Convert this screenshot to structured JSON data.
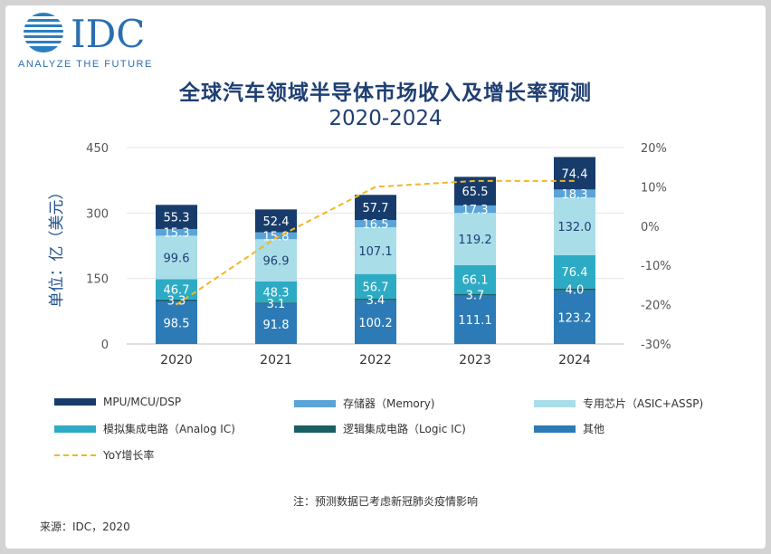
{
  "brand": {
    "name": "IDC",
    "tagline": "ANALYZE THE FUTURE"
  },
  "chart_data": {
    "type": "bar",
    "stacked": true,
    "title": "全球汽车领域半导体市场收入及增长率预测",
    "subtitle": "2020-2024",
    "ylabel": "单位：亿（美元）",
    "ylim": [
      0,
      450
    ],
    "yticks": [
      0,
      150,
      300,
      450
    ],
    "y2lim": [
      -30,
      20
    ],
    "y2ticks": [
      "20%",
      "10%",
      "0%",
      "-10%",
      "-20%",
      "-30%"
    ],
    "y2tick_values": [
      20,
      10,
      0,
      -10,
      -20,
      -30
    ],
    "categories": [
      "2020",
      "2021",
      "2022",
      "2023",
      "2024"
    ],
    "series": [
      {
        "name": "其他",
        "color": "#2c7bb6",
        "values": [
          98.5,
          91.8,
          100.2,
          111.1,
          123.2
        ]
      },
      {
        "name": "逻辑集成电路（Logic IC)",
        "color": "#1c5f62",
        "values": [
          3.3,
          3.1,
          3.4,
          3.7,
          4.0
        ]
      },
      {
        "name": "模拟集成电路（Analog IC)",
        "color": "#2eabc4",
        "values": [
          46.7,
          48.3,
          56.7,
          66.1,
          76.4
        ]
      },
      {
        "name": "专用芯片（ASIC+ASSP)",
        "color": "#a9dde8",
        "values": [
          99.6,
          96.9,
          107.1,
          119.2,
          132.0
        ]
      },
      {
        "name": "存储器（Memory)",
        "color": "#5aa4d8",
        "values": [
          15.3,
          15.8,
          16.5,
          17.3,
          18.3
        ]
      },
      {
        "name": "MPU/MCU/DSP",
        "color": "#173c6b",
        "values": [
          55.3,
          52.4,
          57.7,
          65.5,
          74.4
        ]
      }
    ],
    "line": {
      "name": "YoY增长率",
      "color": "#f2b623",
      "axis": "right",
      "values": [
        -20,
        -3,
        10,
        11.5,
        11.5
      ]
    },
    "legend_rows": [
      [
        "MPU/MCU/DSP",
        "存储器（Memory)",
        "专用芯片（ASIC+ASSP)"
      ],
      [
        "模拟集成电路（Analog IC)",
        "逻辑集成电路（Logic IC)",
        "其他"
      ],
      [
        "YoY增长率"
      ]
    ]
  },
  "note": "注：预测数据已考虑新冠肺炎疫情影响",
  "source": "来源：IDC，2020"
}
